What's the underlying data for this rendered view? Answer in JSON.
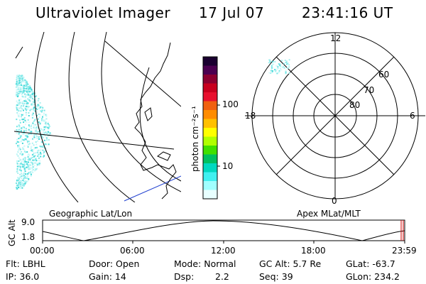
{
  "header": {
    "title": "Ultraviolet Imager",
    "date": "17 Jul 07",
    "time": "23:41:16 UT"
  },
  "colorbar": {
    "unit_label": "photon cm⁻²s⁻¹",
    "ticks": [
      "100",
      "10"
    ],
    "colors": [
      "#1a0030",
      "#4b0050",
      "#8b0030",
      "#c8001e",
      "#e8102e",
      "#f06010",
      "#ff8c00",
      "#ffc000",
      "#ffff00",
      "#b0ff00",
      "#40e000",
      "#00c060",
      "#00d8c0",
      "#40f0f0",
      "#a0ffff",
      "#e8ffff"
    ]
  },
  "left_panel": {
    "label": "Geographic Lat/Lon"
  },
  "polar_plot": {
    "label": "Apex MLat/MLT",
    "mlt_labels": [
      "12",
      "18",
      "6",
      "0"
    ],
    "lat_labels": [
      "80",
      "70",
      "60"
    ]
  },
  "altitude_plot": {
    "ylabel": "GC Alt",
    "yticks": [
      "9.0",
      "1.8"
    ],
    "xticks": [
      "00:00",
      "06:00",
      "12:00",
      "18:00",
      "23:59"
    ]
  },
  "status": {
    "filter": "Flt: LBHL",
    "ip": "IP: 36.0",
    "door": "Door: Open",
    "gain": "Gain: 14",
    "mode": "Mode: Normal",
    "dsp_label": "Dsp:",
    "dsp_value": "2.2",
    "gc_alt": "GC Alt: 5.7 Re",
    "seq": "Seq: 39",
    "glat": "GLat: -63.7",
    "glon": "GLon: 234.2"
  }
}
